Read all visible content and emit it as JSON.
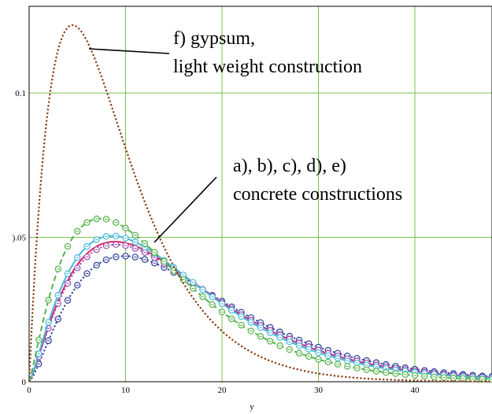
{
  "chart_data": {
    "type": "line",
    "xlabel": "y",
    "ylabel": "",
    "xlim": [
      0,
      48
    ],
    "ylim": [
      0,
      0.13
    ],
    "x_ticks": [
      0,
      10,
      20,
      30,
      40
    ],
    "x_tick_labels": [
      "0",
      "10",
      "20",
      "30",
      "40"
    ],
    "y_ticks": [
      0,
      0.05,
      0.1
    ],
    "y_tick_labels": [
      "0",
      ").05",
      "0.1"
    ],
    "grid": true,
    "series": [
      {
        "key": "a",
        "color": "#2e3f9b",
        "style": "dotted-markers",
        "shape_k": 2.4,
        "peak_x": 9.9,
        "peak_y": 0.0435
      },
      {
        "key": "b",
        "color": "#e0245e",
        "style": "solid",
        "shape_k": 2.3,
        "peak_x": 8.9,
        "peak_y": 0.0485
      },
      {
        "key": "c",
        "color": "#a04db0",
        "style": "dotted-markers",
        "shape_k": 2.3,
        "peak_x": 9.0,
        "peak_y": 0.0475
      },
      {
        "key": "d",
        "color": "#49b8dd",
        "style": "solid-markers",
        "shape_k": 2.3,
        "peak_x": 8.6,
        "peak_y": 0.0505
      },
      {
        "key": "e",
        "color": "#54b24a",
        "style": "dashed-markers",
        "shape_k": 2.2,
        "peak_x": 7.4,
        "peak_y": 0.0565
      },
      {
        "key": "f",
        "color": "#8b3a12",
        "style": "dotted",
        "shape_k": 2.0,
        "peak_x": 4.5,
        "peak_y": 0.1235
      }
    ],
    "annotations": [
      {
        "lines": [
          "f) gypsum,",
          "light weight construction"
        ]
      },
      {
        "lines": [
          "a), b), c), d), e)",
          "concrete constructions"
        ]
      }
    ]
  }
}
